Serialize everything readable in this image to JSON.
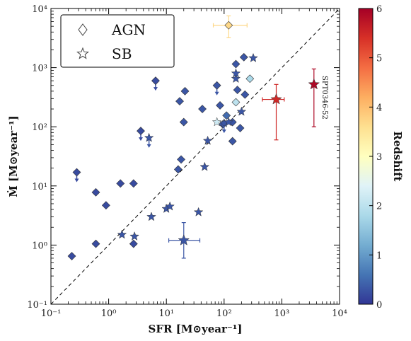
{
  "chart_data": {
    "type": "scatter",
    "xlabel": "SFR [M⊙year⁻¹]",
    "ylabel": "Ṁ [M⊙year⁻¹]",
    "xscale": "log",
    "yscale": "log",
    "xlim": [
      0.1,
      10000
    ],
    "ylim": [
      0.1,
      10000
    ],
    "x_ticks": [
      "10⁻¹",
      "10⁰",
      "10¹",
      "10²",
      "10³",
      "10⁴"
    ],
    "y_ticks": [
      "10⁻¹",
      "10⁰",
      "10¹",
      "10²",
      "10³",
      "10⁴"
    ],
    "one_to_one_line": true,
    "legend": {
      "position": "top-left",
      "entries": [
        {
          "marker": "diamond",
          "label": "AGN"
        },
        {
          "marker": "star",
          "label": "SB"
        }
      ]
    },
    "colorbar": {
      "label": "Redshift",
      "min": 0,
      "max": 6,
      "ticks": [
        "0",
        "1",
        "2",
        "3",
        "4",
        "5",
        "6"
      ]
    },
    "annotation": "SPT0346-52",
    "agn": [
      {
        "x": 0.23,
        "y": 0.65,
        "z": 0.2
      },
      {
        "x": 0.6,
        "y": 1.05,
        "z": 0.2
      },
      {
        "x": 2.7,
        "y": 1.05,
        "z": 0.2
      },
      {
        "x": 0.9,
        "y": 4.7,
        "z": 0.2
      },
      {
        "x": 0.6,
        "y": 7.8,
        "z": 0.2
      },
      {
        "x": 1.6,
        "y": 11,
        "z": 0.2
      },
      {
        "x": 2.7,
        "y": 11,
        "z": 0.2
      },
      {
        "x": 0.28,
        "y": 17,
        "z": 0.2,
        "upper": true
      },
      {
        "x": 3.6,
        "y": 85,
        "z": 0.2,
        "upper": true
      },
      {
        "x": 6.5,
        "y": 600,
        "z": 0.2,
        "upper": true
      },
      {
        "x": 16,
        "y": 19,
        "z": 0.3
      },
      {
        "x": 18,
        "y": 28,
        "z": 0.3
      },
      {
        "x": 20,
        "y": 120,
        "z": 0.3
      },
      {
        "x": 17,
        "y": 270,
        "z": 0.3
      },
      {
        "x": 21,
        "y": 400,
        "z": 0.3
      },
      {
        "x": 42,
        "y": 200,
        "z": 0.3
      },
      {
        "x": 75,
        "y": 500,
        "z": 0.3,
        "upper": true
      },
      {
        "x": 95,
        "y": 110,
        "z": 0.3
      },
      {
        "x": 140,
        "y": 120,
        "z": 0.3
      },
      {
        "x": 140,
        "y": 57,
        "z": 0.3
      },
      {
        "x": 170,
        "y": 420,
        "z": 0.3
      },
      {
        "x": 190,
        "y": 95,
        "z": 0.3
      },
      {
        "x": 230,
        "y": 350,
        "z": 0.3
      },
      {
        "x": 160,
        "y": 1150,
        "z": 0.3
      },
      {
        "x": 220,
        "y": 1500,
        "z": 0.3
      },
      {
        "x": 85,
        "y": 230,
        "z": 0.3
      },
      {
        "x": 110,
        "y": 155,
        "z": 0.5
      },
      {
        "x": 160,
        "y": 260,
        "z": 2.0
      },
      {
        "x": 280,
        "y": 650,
        "z": 1.8
      },
      {
        "x": 120,
        "y": 5200,
        "z": 3.7
      }
    ],
    "sb": [
      {
        "x": 1.7,
        "y": 1.5,
        "z": 0.3
      },
      {
        "x": 2.8,
        "y": 1.4,
        "z": 0.3
      },
      {
        "x": 5.5,
        "y": 3.0,
        "z": 0.3
      },
      {
        "x": 10,
        "y": 4.1,
        "z": 0.3
      },
      {
        "x": 11.5,
        "y": 4.5,
        "z": 0.3
      },
      {
        "x": 20,
        "y": 1.2,
        "z": 0.3
      },
      {
        "x": 36,
        "y": 3.6,
        "z": 0.3
      },
      {
        "x": 46,
        "y": 21,
        "z": 0.3
      },
      {
        "x": 52,
        "y": 58,
        "z": 0.3
      },
      {
        "x": 5,
        "y": 65,
        "z": 0.3,
        "upper": true
      },
      {
        "x": 75,
        "y": 120,
        "z": 2.2
      },
      {
        "x": 100,
        "y": 115,
        "z": 0.3,
        "upper": true
      },
      {
        "x": 120,
        "y": 120,
        "z": 0.3
      },
      {
        "x": 160,
        "y": 650,
        "z": 0.3
      },
      {
        "x": 320,
        "y": 1450,
        "z": 0.3
      },
      {
        "x": 200,
        "y": 180,
        "z": 0.3
      },
      {
        "x": 160,
        "y": 800,
        "z": 0.3
      },
      {
        "x": 800,
        "y": 290,
        "z": 5.5
      },
      {
        "x": 3600,
        "y": 520,
        "z": 5.9
      }
    ],
    "error_bars": [
      {
        "x": 20,
        "y": 1.2,
        "xlo": 11,
        "xhi": 38,
        "ylo": 0.6,
        "yhi": 2.4,
        "z": 0.3
      },
      {
        "x": 120,
        "y": 5200,
        "xlo": 65,
        "xhi": 250,
        "ylo": 3200,
        "yhi": 7500,
        "z": 3.7
      },
      {
        "x": 800,
        "y": 290,
        "xlo": 460,
        "xhi": 1100,
        "ylo": 60,
        "yhi": 520,
        "z": 5.5
      },
      {
        "x": 3600,
        "y": 520,
        "xlo": 3600,
        "xhi": 3600,
        "ylo": 100,
        "yhi": 950,
        "z": 5.9
      }
    ]
  }
}
